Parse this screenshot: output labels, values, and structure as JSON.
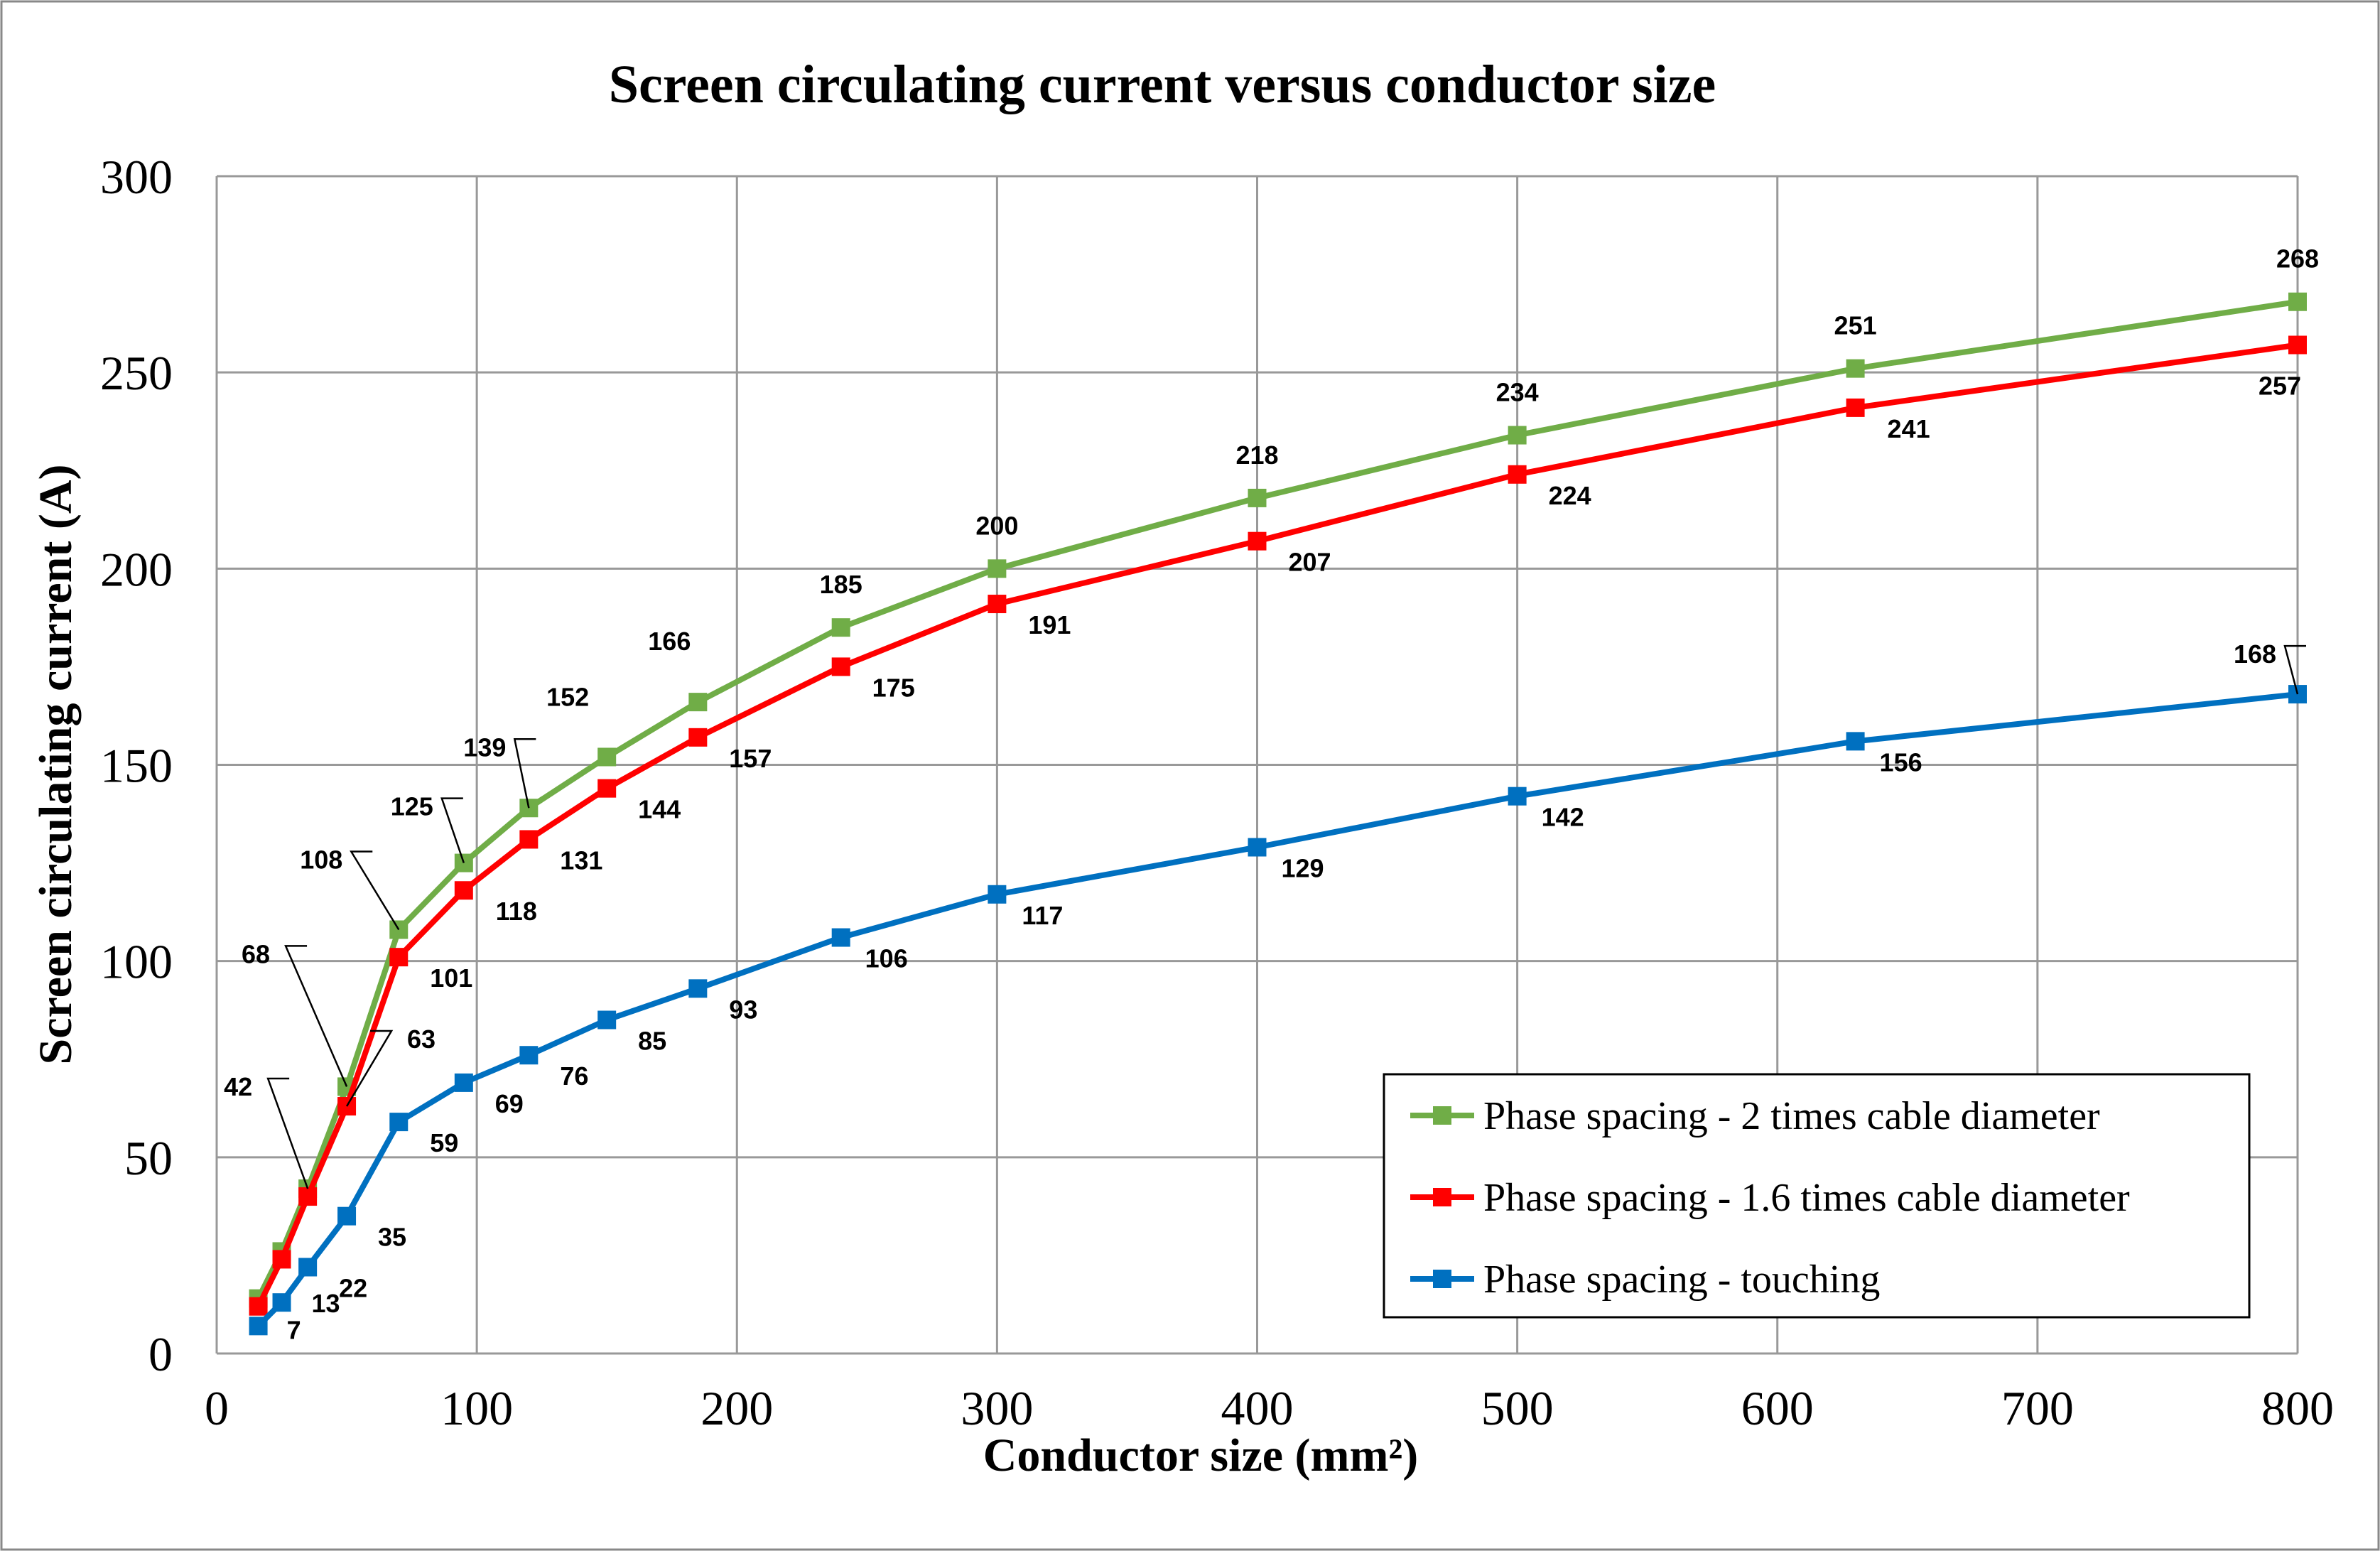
{
  "chart_data": {
    "type": "line",
    "title": "Screen circulating current versus conductor size",
    "xlabel": "Conductor size (mm²)",
    "ylabel": "Screen circulating current (A)",
    "xlim": [
      0,
      800
    ],
    "ylim": [
      0,
      300
    ],
    "xticks": [
      0,
      100,
      200,
      300,
      400,
      500,
      600,
      700,
      800
    ],
    "yticks": [
      0,
      50,
      100,
      150,
      200,
      250,
      300
    ],
    "grid": true,
    "legend_position": "bottom-right",
    "x": [
      16,
      25,
      35,
      50,
      70,
      95,
      120,
      150,
      185,
      240,
      300,
      400,
      500,
      630,
      800
    ],
    "series": [
      {
        "name": "Phase spacing - 2 times cable diameter",
        "color": "#70AD47",
        "values": [
          14,
          26,
          42,
          68,
          108,
          125,
          139,
          152,
          166,
          185,
          200,
          218,
          234,
          251,
          268
        ],
        "labels": [
          null,
          null,
          "42",
          "68",
          "108",
          "125",
          "139",
          "152",
          "166",
          "185",
          "200",
          "218",
          "234",
          "251",
          "268"
        ]
      },
      {
        "name": "Phase spacing - 1.6 times cable diameter",
        "color": "#FF0000",
        "values": [
          12,
          24,
          40,
          63,
          101,
          118,
          131,
          144,
          157,
          175,
          191,
          207,
          224,
          241,
          257
        ],
        "labels": [
          null,
          null,
          null,
          "63",
          "101",
          "118",
          "131",
          "144",
          "157",
          "175",
          "191",
          "207",
          "224",
          "241",
          "257"
        ]
      },
      {
        "name": "Phase spacing - touching",
        "color": "#0070C0",
        "values": [
          7,
          13,
          22,
          35,
          59,
          69,
          76,
          85,
          93,
          106,
          117,
          129,
          142,
          156,
          168
        ],
        "labels": [
          "7",
          "13",
          "22",
          "35",
          "59",
          "69",
          "76",
          "85",
          "93",
          "106",
          "117",
          "129",
          "142",
          "156",
          "168"
        ]
      }
    ]
  }
}
